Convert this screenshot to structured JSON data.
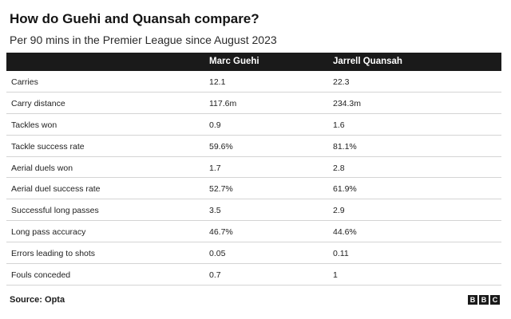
{
  "chart_data": {
    "type": "table",
    "title": "How do Guehi and Quansah compare?",
    "subtitle": "Per 90 mins in the Premier League since August 2023",
    "columns": [
      "",
      "Marc Guehi",
      "Jarrell Quansah"
    ],
    "rows": [
      {
        "metric": "Carries",
        "guehi": "12.1",
        "quansah": "22.3"
      },
      {
        "metric": "Carry distance",
        "guehi": "117.6m",
        "quansah": "234.3m"
      },
      {
        "metric": "Tackles won",
        "guehi": "0.9",
        "quansah": "1.6"
      },
      {
        "metric": "Tackle success rate",
        "guehi": "59.6%",
        "quansah": "81.1%"
      },
      {
        "metric": "Aerial duels won",
        "guehi": "1.7",
        "quansah": "2.8"
      },
      {
        "metric": "Aerial duel success rate",
        "guehi": "52.7%",
        "quansah": "61.9%"
      },
      {
        "metric": "Successful long passes",
        "guehi": "3.5",
        "quansah": "2.9"
      },
      {
        "metric": "Long pass accuracy",
        "guehi": "46.7%",
        "quansah": "44.6%"
      },
      {
        "metric": "Errors leading to shots",
        "guehi": "0.05",
        "quansah": "0.11"
      },
      {
        "metric": "Fouls conceded",
        "guehi": "0.7",
        "quansah": "1"
      }
    ],
    "source": "Source: Opta",
    "logo": [
      "B",
      "B",
      "C"
    ]
  },
  "colors": {
    "header_bg": "#1a1a1a",
    "header_text": "#ffffff",
    "row_border": "#d4d4d4",
    "text": "#222222"
  }
}
